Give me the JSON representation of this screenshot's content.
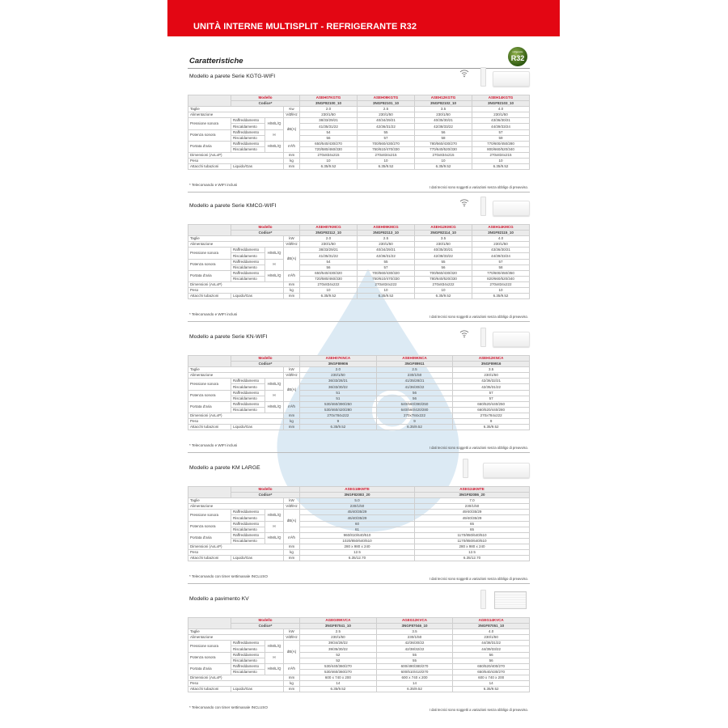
{
  "header": {
    "title": "UNITÀ INTERNE MULTISPLIT - REFRIGERANTE R32"
  },
  "heading": "Caratteristiche",
  "badge": {
    "text": "R32",
    "small": "refrigerante",
    "color": "#3d6b17"
  },
  "colors": {
    "brand_red": "#e30613",
    "model_red": "#d0142c"
  },
  "labels": {
    "modello": "Modello",
    "codice": "Codice*",
    "taglie": "Taglie",
    "alimentazione": "Alimentazione",
    "alim_unit": "V/Ø/Hz",
    "pressione": "Pressione sonora",
    "potenza": "Potenza sonora",
    "portata": "Portata d'aria",
    "raff": "Raffreddamento",
    "risc": "Riscaldamento",
    "hmlq": "H/M/L/Q",
    "h": "H",
    "dba": "dB(A)",
    "m3h": "m³/h",
    "dimensioni": "Dimensioni (AxLxP)",
    "mm": "mm",
    "peso": "Peso",
    "kg": "kg",
    "attacchi": "Attacchi tubazioni",
    "liquido_gas": "Liquido/Gas",
    "disclaimer": "I dati tecnici sono soggetti a variazioni senza obbligo di preavviso."
  },
  "sections": [
    {
      "title": "Modello a parete Serie KGTG-WIFI",
      "icons": [
        "wifi-icon",
        "remote-control",
        "wall-unit"
      ],
      "power_unit": "Kw",
      "footnote": "* Telecomando e WIFI inclusi",
      "models": [
        "ASEH07KGTG",
        "ASEH09KGTG",
        "ASEH12KGTG",
        "ASEH14KGTG"
      ],
      "codes": [
        "3NGF82100_10",
        "3NGF82101_10",
        "3NGF82102_10",
        "3NGF82103_10"
      ],
      "taglie": [
        "2.0",
        "2.5",
        "3.5",
        "4.0"
      ],
      "alim": [
        "230/1/50",
        "230/1/50",
        "230/1/50",
        "230/1/50"
      ],
      "press_raff": [
        "38/33/29/21",
        "40/34/29/21",
        "40/35/30/21",
        "43/36/30/21"
      ],
      "press_risc": [
        "41/35/31/22",
        "42/36/31/22",
        "42/38/33/22",
        "44/39/33/24"
      ],
      "pot_raff": [
        "54",
        "55",
        "56",
        "57"
      ],
      "pot_risc": [
        "56",
        "57",
        "58",
        "59"
      ],
      "port_raff": [
        "650/540/430/270",
        "700/560/430/270",
        "780/560/430/270",
        "770/600/450/280"
      ],
      "port_risc": [
        "720/580/460/330",
        "750/610/470/330",
        "770/640/520/330",
        "800/660/520/340"
      ],
      "dim": [
        "270x834x215",
        "270x834x215",
        "270x834x215",
        "270x834x215"
      ],
      "peso": [
        "10",
        "10",
        "10",
        "10"
      ],
      "attacchi": [
        "6.35/9.52",
        "6.35/9.52",
        "6.35/9.52",
        "6.35/9.52"
      ]
    },
    {
      "title": "Modello a parete Serie KMCG-WIFI",
      "icons": [
        "wifi-icon",
        "remote-control",
        "wall-unit"
      ],
      "power_unit": "kW",
      "footnote": "* Telecomando e WIFI inclusi",
      "models": [
        "ASEH07KMCG",
        "ASEH09KMCG",
        "ASEH12KMCG",
        "ASEH14KMCG"
      ],
      "codes": [
        "3NGF82112_10",
        "3NGF82113_10",
        "3NGF82114_10",
        "3NGF82115_10"
      ],
      "taglie": [
        "2.0",
        "2.5",
        "3.5",
        "4.0"
      ],
      "alim": [
        "230/1/50",
        "230/1/50",
        "230/1/50",
        "230/1/50"
      ],
      "press_raff": [
        "38/33/29/21",
        "40/34/29/21",
        "40/35/30/21",
        "43/36/30/21"
      ],
      "press_risc": [
        "41/35/31/22",
        "42/36/31/22",
        "42/38/33/22",
        "44/39/33/24"
      ],
      "pot_raff": [
        "54",
        "55",
        "55",
        "57"
      ],
      "pot_risc": [
        "56",
        "57",
        "56",
        "58"
      ],
      "port_raff": [
        "650/540/430/320",
        "700/560/430/320",
        "700/560/430/320",
        "770/600/450/350"
      ],
      "port_risc": [
        "720/580/460/330",
        "750/610/470/330",
        "780/640/520/330",
        "820/660/520/340"
      ],
      "dim": [
        "270x834x222",
        "270x834x222",
        "270x834x222",
        "270x834x222"
      ],
      "peso": [
        "10",
        "10",
        "10",
        "10"
      ],
      "attacchi": [
        "6.35/9.52",
        "6.35/9.52",
        "6.35/9.52",
        "6.35/9.52"
      ]
    },
    {
      "title": "Modello a parete Serie KN-WIFI",
      "icons": [
        "wifi-icon",
        "remote-control",
        "wall-unit"
      ],
      "power_unit": "kW",
      "footnote": "* Telecomando e WIFI inclusi",
      "models": [
        "ASEH07KNCA",
        "ASEH09KNCA",
        "ASEH12KNCA"
      ],
      "codes": [
        "3NGF89906",
        "3NGF89911",
        "3NGF89916"
      ],
      "taglie": [
        "2.0",
        "2.5",
        "3.5"
      ],
      "alim": [
        "230/1/50",
        "230/1/50",
        "230/1/50"
      ],
      "press_raff": [
        "36/33/28/21",
        "41/35/28/21",
        "42/36/32/21"
      ],
      "press_risc": [
        "36/33/30/22",
        "41/36/30/22",
        "42/35/31/22"
      ],
      "pot_raff": [
        "51",
        "56",
        "57"
      ],
      "pot_risc": [
        "51",
        "56",
        "57"
      ],
      "port_raff": [
        "530/460/390/250",
        "640/560/390/250",
        "660/520/440/250"
      ],
      "port_risc": [
        "530/460/420/280",
        "640/560/420/280",
        "660/520/440/280"
      ],
      "dim": [
        "270x784x222",
        "270x784x222",
        "270x784x222"
      ],
      "peso": [
        "9",
        "9",
        "9"
      ],
      "attacchi": [
        "6.35/9.52",
        "6.35/9.52",
        "6.35/9.52"
      ]
    },
    {
      "title": "Modello a parete KM LARGE",
      "icons": [
        "remote-control",
        "wall-unit"
      ],
      "power_unit": "kW",
      "footnote": "* Telecomando con timer settimanale INCLUSO",
      "models": [
        "ASEG18KMTE",
        "ASEG24KMTE"
      ],
      "codes": [
        "3NGF82083_20",
        "3NGF82086_20"
      ],
      "taglie": [
        "5.0",
        "7.0"
      ],
      "alim": [
        "230/1/50",
        "230/1/50"
      ],
      "press_raff": [
        "45/40/35/29",
        "49/40/35/29"
      ],
      "press_risc": [
        "46/40/35/29",
        "49/40/35/29"
      ],
      "pot_raff": [
        "60",
        "65"
      ],
      "pot_risc": [
        "61",
        "65"
      ],
      "port_raff": [
        "960/810/640/510",
        "1170/850/640/510"
      ],
      "port_risc": [
        "1020/850/640/510",
        "1170/850/640/510"
      ],
      "dim": [
        "280 x 980 x 240",
        "280 x 980 x 240"
      ],
      "peso": [
        "12.5",
        "12.5"
      ],
      "attacchi": [
        "6.35/12.70",
        "6.35/12.70"
      ]
    },
    {
      "title": "Modello a pavimento KV",
      "icons": [
        "remote-control",
        "floor-unit"
      ],
      "power_unit": "kW",
      "footnote": "* Telecomando con timer settimanale INCLUSO",
      "models": [
        "AGEG09KVCA",
        "AGEG12KVCA",
        "AGEG14KVCA"
      ],
      "codes": [
        "3NGF87041_10",
        "3NGF87046_10",
        "3NGF87051_10"
      ],
      "taglie": [
        "2.5",
        "3.5",
        "4.0"
      ],
      "alim": [
        "230/1/50",
        "230/1/50",
        "230/1/50"
      ],
      "press_raff": [
        "39/34/28/22",
        "42/36/30/22",
        "44/38/31/22"
      ],
      "press_risc": [
        "39/35/30/22",
        "42/38/32/22",
        "44/39/33/22"
      ],
      "pot_raff": [
        "52",
        "55",
        "56"
      ],
      "pot_risc": [
        "52",
        "55",
        "56"
      ],
      "port_raff": [
        "530/440/360/270",
        "600/490/380/270",
        "650/520/400/270"
      ],
      "port_risc": [
        "530/460/360/270",
        "600/510/410/270",
        "650/540/430/270"
      ],
      "dim": [
        "600 x 740 x 200",
        "600 x 740 x 200",
        "600 x 740 x 200"
      ],
      "peso": [
        "14",
        "14",
        "14"
      ],
      "attacchi": [
        "6.35/9.52",
        "6.35/9.52",
        "6.35/9.52"
      ]
    }
  ]
}
